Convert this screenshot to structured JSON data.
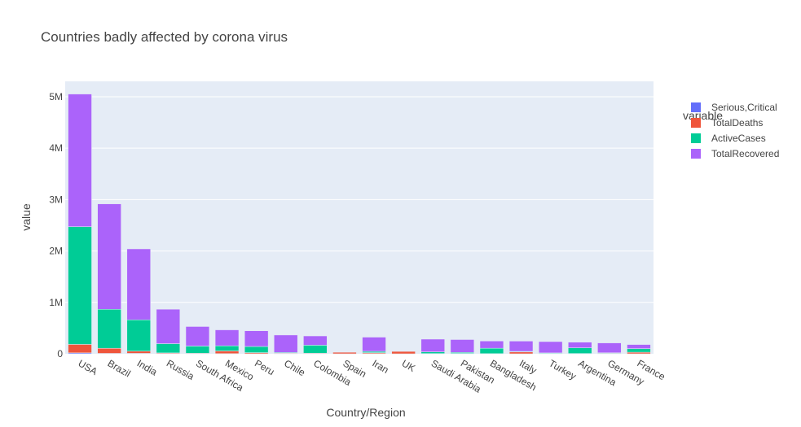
{
  "chart_data": {
    "type": "bar",
    "stacked": true,
    "title": "Countries badly affected by corona virus",
    "xlabel": "Country/Region",
    "ylabel": "value",
    "ylim": [
      0,
      5300000
    ],
    "yticks": [
      {
        "value": 0,
        "label": "0"
      },
      {
        "value": 1000000,
        "label": "1M"
      },
      {
        "value": 2000000,
        "label": "2M"
      },
      {
        "value": 3000000,
        "label": "3M"
      },
      {
        "value": 4000000,
        "label": "4M"
      },
      {
        "value": 5000000,
        "label": "5M"
      }
    ],
    "grid": true,
    "legend_title": "variable",
    "legend_position": "right",
    "categories": [
      "USA",
      "Brazil",
      "India",
      "Russia",
      "South Africa",
      "Mexico",
      "Peru",
      "Chile",
      "Colombia",
      "Spain",
      "Iran",
      "UK",
      "Saudi Arabia",
      "Pakistan",
      "Bangladesh",
      "Italy",
      "Turkey",
      "Argentina",
      "Germany",
      "France"
    ],
    "series": [
      {
        "name": "Serious,Critical",
        "color": "#636efa",
        "values": [
          18000,
          8300,
          8900,
          2300,
          539,
          3700,
          1500,
          1400,
          1500,
          600,
          4000,
          75,
          1800,
          950,
          0,
          50,
          600,
          1100,
          250,
          400
        ]
      },
      {
        "name": "TotalDeaths",
        "color": "#ef553b",
        "values": [
          165000,
          98000,
          42000,
          15000,
          10000,
          52000,
          21000,
          10000,
          11000,
          28500,
          18000,
          46000,
          3200,
          6000,
          3400,
          35000,
          5800,
          5000,
          9200,
          30000
        ]
      },
      {
        "name": "ActiveCases",
        "color": "#00cc96",
        "values": [
          2290000,
          760000,
          610000,
          180000,
          140000,
          100000,
          120000,
          14000,
          155000,
          0,
          26000,
          0,
          32000,
          20000,
          105000,
          12000,
          11000,
          110000,
          10000,
          70000
        ]
      },
      {
        "name": "TotalRecovered",
        "color": "#ab63fa",
        "values": [
          2580000,
          2050000,
          1380000,
          670000,
          380000,
          310000,
          305000,
          340000,
          180000,
          0,
          276000,
          0,
          248000,
          250000,
          140000,
          200000,
          220000,
          110000,
          192000,
          80000
        ]
      }
    ]
  }
}
